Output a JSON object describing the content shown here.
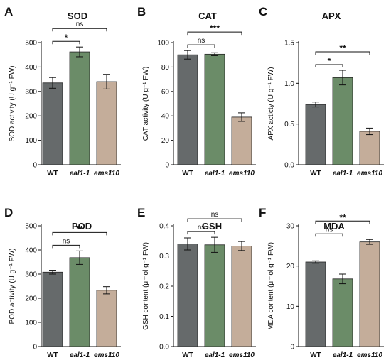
{
  "chart_data": [
    {
      "type": "bar",
      "panel": "A",
      "title": "SOD",
      "ylabel": "SOD activity (U g⁻¹ FW)",
      "ylim": [
        0,
        500
      ],
      "yticks": [
        0,
        100,
        200,
        300,
        400,
        500
      ],
      "categories": [
        "WT",
        "eal1-1",
        "ems110"
      ],
      "values": [
        335,
        462,
        340
      ],
      "errors": [
        22,
        20,
        30
      ],
      "colors": [
        "#666a6b",
        "#6b8c68",
        "#c4ad9a"
      ],
      "significance": [
        {
          "from": 0,
          "to": 1,
          "label": "*",
          "level": 1
        },
        {
          "from": 0,
          "to": 2,
          "label": "ns",
          "level": 2
        }
      ]
    },
    {
      "type": "bar",
      "panel": "B",
      "title": "CAT",
      "ylabel": "CAT activity (U g⁻¹ FW)",
      "ylim": [
        0,
        100
      ],
      "yticks": [
        0,
        20,
        40,
        60,
        80,
        100
      ],
      "categories": [
        "WT",
        "eal1-1",
        "ems110"
      ],
      "values": [
        90,
        90.5,
        39
      ],
      "errors": [
        3.5,
        1.2,
        3.5
      ],
      "colors": [
        "#666a6b",
        "#6b8c68",
        "#c4ad9a"
      ],
      "significance": [
        {
          "from": 0,
          "to": 1,
          "label": "ns",
          "level": 1
        },
        {
          "from": 0,
          "to": 2,
          "label": "***",
          "level": 2
        }
      ]
    },
    {
      "type": "bar",
      "panel": "C",
      "title": "APX",
      "ylabel": "APX acticty (U g⁻¹ FW)",
      "ylim": [
        0,
        1.5
      ],
      "yticks": [
        0.0,
        0.5,
        1.0,
        1.5
      ],
      "categories": [
        "WT",
        "eal1-1",
        "ems110"
      ],
      "values": [
        0.74,
        1.07,
        0.41
      ],
      "errors": [
        0.03,
        0.09,
        0.04
      ],
      "colors": [
        "#666a6b",
        "#6b8c68",
        "#c4ad9a"
      ],
      "significance": [
        {
          "from": 0,
          "to": 1,
          "label": "*",
          "level": 1
        },
        {
          "from": 0,
          "to": 2,
          "label": "**",
          "level": 2
        }
      ]
    },
    {
      "type": "bar",
      "panel": "D",
      "title": "POD",
      "ylabel": "POD activity (U g⁻¹ FW)",
      "ylim": [
        0,
        500
      ],
      "yticks": [
        0,
        100,
        200,
        300,
        400,
        500
      ],
      "categories": [
        "WT",
        "eal1-1",
        "ems110"
      ],
      "values": [
        308,
        368,
        233
      ],
      "errors": [
        8,
        28,
        15
      ],
      "colors": [
        "#666a6b",
        "#6b8c68",
        "#c4ad9a"
      ],
      "significance": [
        {
          "from": 0,
          "to": 1,
          "label": "ns",
          "level": 1
        },
        {
          "from": 0,
          "to": 2,
          "label": "**",
          "level": 2
        }
      ]
    },
    {
      "type": "bar",
      "panel": "E",
      "title": "GSH",
      "ylabel": "GSH content (μmol g⁻¹ FW)",
      "ylim": [
        0,
        0.4
      ],
      "yticks": [
        0.0,
        0.1,
        0.2,
        0.3,
        0.4
      ],
      "categories": [
        "WT",
        "eal1-1",
        "ems110"
      ],
      "values": [
        0.34,
        0.337,
        0.333
      ],
      "errors": [
        0.02,
        0.025,
        0.015
      ],
      "colors": [
        "#666a6b",
        "#6b8c68",
        "#c4ad9a"
      ],
      "significance": [
        {
          "from": 0,
          "to": 1,
          "label": "ns",
          "level": 1
        },
        {
          "from": 0,
          "to": 2,
          "label": "ns",
          "level": 2
        }
      ]
    },
    {
      "type": "bar",
      "panel": "F",
      "title": "MDA",
      "ylabel": "MDA content (μmol g⁻¹ FW)",
      "ylim": [
        0,
        30
      ],
      "yticks": [
        0,
        10,
        20,
        30
      ],
      "categories": [
        "WT",
        "eal1-1",
        "ems110"
      ],
      "values": [
        21,
        16.8,
        26
      ],
      "errors": [
        0.3,
        1.2,
        0.6
      ],
      "colors": [
        "#666a6b",
        "#6b8c68",
        "#c4ad9a"
      ],
      "significance": [
        {
          "from": 0,
          "to": 1,
          "label": "ns",
          "level": 1
        },
        {
          "from": 0,
          "to": 2,
          "label": "**",
          "level": 2
        }
      ]
    }
  ]
}
